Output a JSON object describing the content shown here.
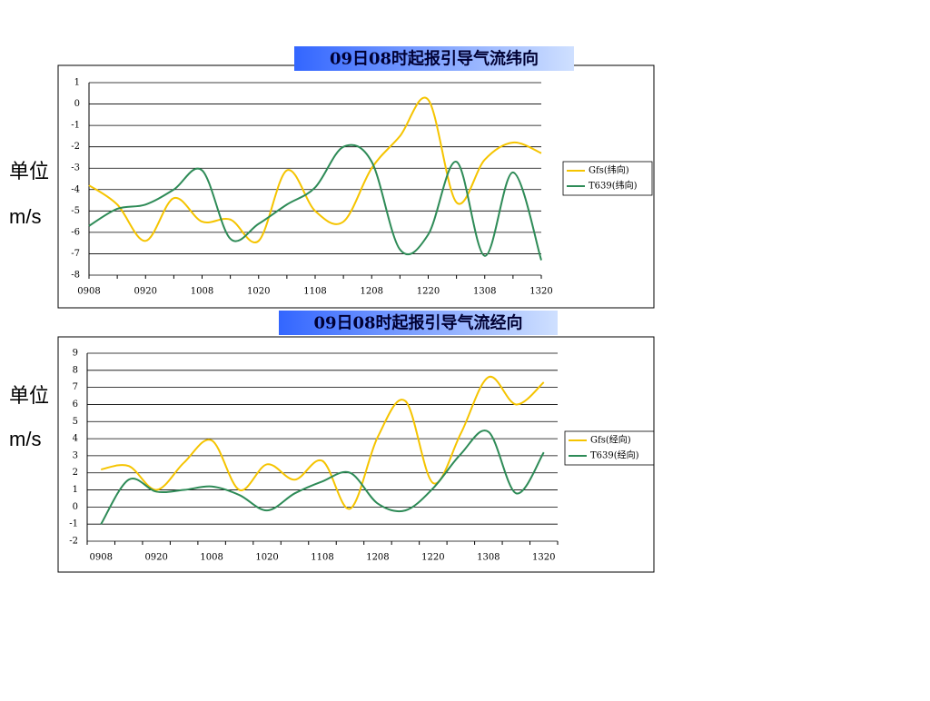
{
  "chart_data": [
    {
      "type": "line",
      "title": "09日08时起报引导气流纬向",
      "unit_label": "单位",
      "unit": "m/s",
      "categories": [
        "0908",
        null,
        "0920",
        null,
        "1008",
        null,
        "1020",
        null,
        "1108",
        null,
        "1208",
        null,
        "1220",
        null,
        "1308",
        null,
        "1320"
      ],
      "ylim": [
        -8,
        1
      ],
      "yticks": [
        -8,
        -7,
        -6,
        -5,
        -4,
        -3,
        -2,
        -1,
        0,
        1
      ],
      "grid": true,
      "legend": "right",
      "series": [
        {
          "name": "Gfs(纬向)",
          "color": "#f5c400",
          "values": [
            -3.8,
            -4.7,
            -6.4,
            -4.4,
            -5.5,
            -5.4,
            -6.4,
            -3.1,
            -5.0,
            -5.5,
            -3.0,
            -1.5,
            0.2,
            -4.6,
            -2.6,
            -1.8,
            -2.3
          ]
        },
        {
          "name": "T639(纬向)",
          "color": "#2e8b57",
          "values": [
            -5.7,
            -4.9,
            -4.7,
            -4.0,
            -3.1,
            -6.3,
            -5.6,
            -4.7,
            -3.9,
            -2.0,
            -2.7,
            -6.8,
            -6.1,
            -2.7,
            -7.1,
            -3.2,
            -7.3
          ]
        }
      ]
    },
    {
      "type": "line",
      "title": "09日08时起报引导气流经向",
      "unit_label": "单位",
      "unit": "m/s",
      "categories": [
        "0908",
        null,
        "0920",
        null,
        "1008",
        null,
        "1020",
        null,
        "1108",
        null,
        "1208",
        null,
        "1220",
        null,
        "1308",
        null,
        "1320"
      ],
      "ylim": [
        -2,
        9
      ],
      "yticks": [
        -2,
        -1,
        0,
        1,
        2,
        3,
        4,
        5,
        6,
        7,
        8,
        9
      ],
      "grid": true,
      "legend": "right",
      "series": [
        {
          "name": "Gfs(经向)",
          "color": "#f5c400",
          "values": [
            2.2,
            2.4,
            1.0,
            2.6,
            3.9,
            1.0,
            2.5,
            1.6,
            2.7,
            -0.1,
            4.1,
            6.2,
            1.4,
            4.3,
            7.6,
            6.0,
            7.3
          ]
        },
        {
          "name": "T639(经向)",
          "color": "#2e8b57",
          "values": [
            -1.0,
            1.6,
            0.9,
            1.0,
            1.2,
            0.7,
            -0.2,
            0.8,
            1.5,
            2.0,
            0.2,
            -0.2,
            1.1,
            3.1,
            4.4,
            0.8,
            3.2
          ]
        }
      ]
    }
  ]
}
